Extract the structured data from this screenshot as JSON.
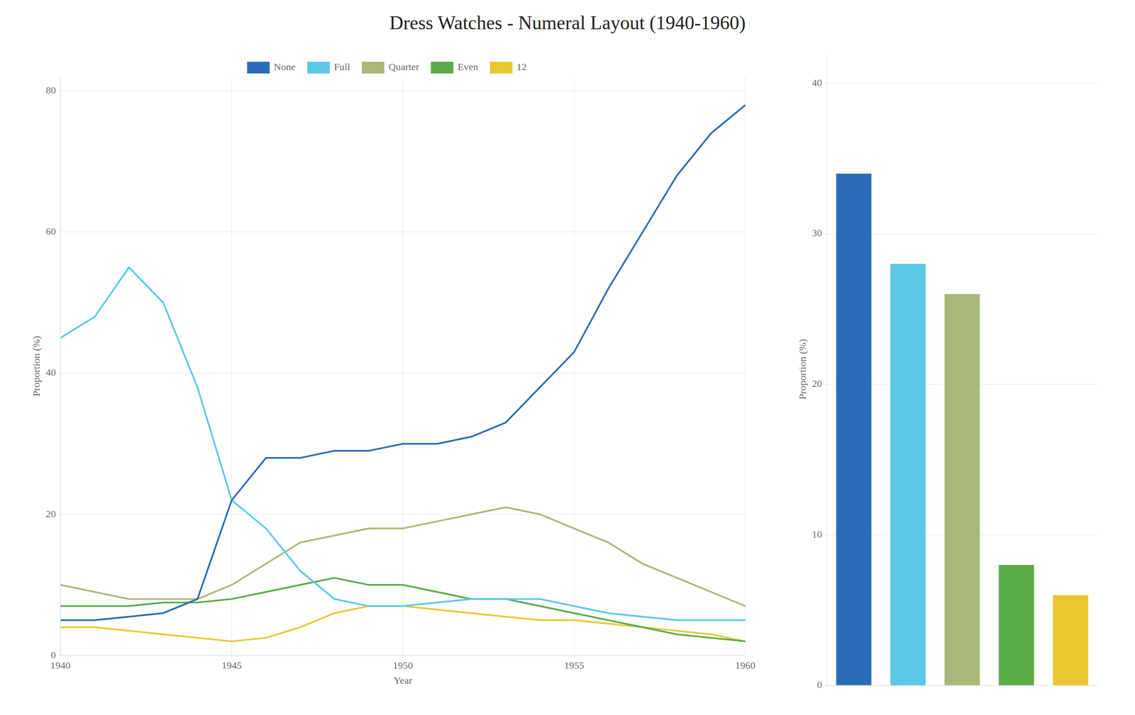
{
  "chart_data": [
    {
      "type": "line",
      "title": "Dress Watches - Numeral Layout (1940-1960)",
      "xlabel": "Year",
      "ylabel": "Proportion (%)",
      "x": [
        1940,
        1941,
        1942,
        1943,
        1944,
        1945,
        1946,
        1947,
        1948,
        1949,
        1950,
        1951,
        1952,
        1953,
        1954,
        1955,
        1956,
        1957,
        1958,
        1959,
        1960
      ],
      "series": [
        {
          "name": "None",
          "color": "#2B6CB8",
          "values": [
            5,
            5,
            5.5,
            6,
            8,
            22,
            28,
            28,
            29,
            29,
            30,
            30,
            31,
            33,
            38,
            43,
            52,
            60,
            68,
            74,
            78
          ]
        },
        {
          "name": "Full",
          "color": "#5BC8E8",
          "values": [
            45,
            48,
            55,
            50,
            38,
            22,
            18,
            12,
            8,
            7,
            7,
            7.5,
            8,
            8,
            8,
            7,
            6,
            5.5,
            5,
            5,
            5
          ]
        },
        {
          "name": "Quarter",
          "color": "#A8B87A",
          "values": [
            10,
            9,
            8,
            8,
            8,
            10,
            13,
            16,
            17,
            18,
            18,
            19,
            20,
            21,
            20,
            18,
            16,
            13,
            11,
            9,
            7
          ]
        },
        {
          "name": "Even",
          "color": "#5BAA48",
          "values": [
            7,
            7,
            7,
            7.5,
            7.5,
            8,
            9,
            10,
            11,
            10,
            10,
            9,
            8,
            8,
            7,
            6,
            5,
            4,
            3,
            2.5,
            2
          ]
        },
        {
          "name": "12",
          "color": "#E8C832",
          "values": [
            4,
            4,
            3.5,
            3,
            2.5,
            2,
            2.5,
            4,
            6,
            7,
            7,
            6.5,
            6,
            5.5,
            5,
            5,
            4.5,
            4,
            3.5,
            3,
            2
          ]
        }
      ],
      "xlim": [
        1940,
        1960
      ],
      "xticks": [
        1940,
        1945,
        1950,
        1955,
        1960
      ],
      "ylim": [
        0,
        82
      ],
      "yticks": [
        0,
        20,
        40,
        60,
        80
      ],
      "grid": true,
      "legend": "top"
    },
    {
      "type": "bar",
      "ylabel": "Proportion (%)",
      "categories": [
        null,
        null,
        null,
        null,
        null
      ],
      "values": [
        34,
        28,
        26,
        8,
        6
      ],
      "colors": [
        "#2B6CB8",
        "#5BC8E8",
        "#A8B87A",
        "#5BAA48",
        "#E8C832"
      ],
      "ylim": [
        0,
        42
      ],
      "yticks": [
        0,
        10,
        20,
        30,
        40
      ],
      "grid": true,
      "tick_labels": "y"
    }
  ]
}
